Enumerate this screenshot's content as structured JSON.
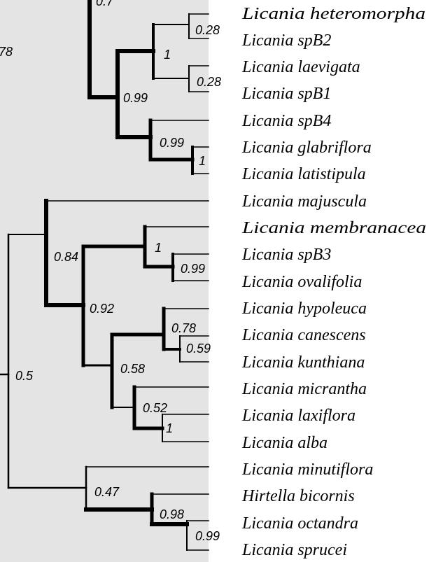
{
  "colors": {
    "tree_panel_background": "#e4e4e4",
    "page_background": "#ffffff",
    "branch_color": "#000000"
  },
  "tree": {
    "taxa": [
      "Licania heteromorpha",
      "Licania spB2",
      "Licania laevigata",
      "Licania spB1",
      "Licania spB4",
      "Licania glabriflora",
      "Licania latistipula",
      "Licania majuscula",
      "Licania membranacea",
      "Licania spB3",
      "Licania ovalifolia",
      "Licania hypoleuca",
      "Licania canescens",
      "Licania kunthiana",
      "Licania micrantha",
      "Licania laxiflora",
      "Licania alba",
      "Licania minutiflora",
      "Hirtella bicornis",
      "Licania octandra",
      "Licania sprucei"
    ],
    "support_values": {
      "n_top": "0.7",
      "n_left_cut": "78",
      "n_spB2": "0.28",
      "n_laevigata_spB1": "0.28",
      "n_mid_pair": "1",
      "n_upper": "0.99",
      "n_glabriflora_clade": "0.99",
      "n_glabriflora_latistipula": "1",
      "n_root": "0.5",
      "n_majuscula_clade": "0.84",
      "n_membranacea_clade": "1",
      "n_spB3_ovalifolia": "0.99",
      "n_inner": "0.92",
      "n_hypoleuca_clade": "0.78",
      "n_canescens_kunthiana": "0.59",
      "n_big": "0.58",
      "n_micrantha_clade": "0.52",
      "n_laxiflora_alba": "1",
      "n_minutiflora_clade": "0.47",
      "n_bicornis_clade": "0.98",
      "n_octandra_sprucei": "0.99"
    }
  }
}
